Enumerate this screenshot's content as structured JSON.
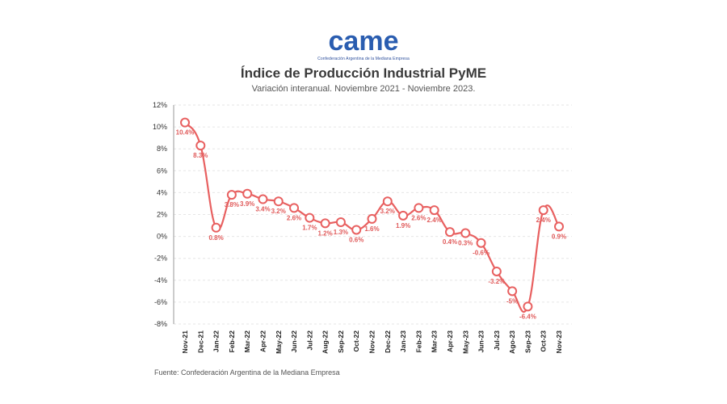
{
  "header": {
    "logo_text": "came",
    "logo_caption": "Confederación Argentina de la Mediana Empresa",
    "title": "Índice de Producción Industrial PyME",
    "subtitle": "Variación interanual. Noviembre 2021 - Noviembre 2023."
  },
  "footer": {
    "source": "Fuente: Confederación Argentina de la Mediana Empresa"
  },
  "colors": {
    "line": "#e86060",
    "marker_fill": "#ffffff",
    "label": "#e05a5a",
    "grid": "#e6e6e6",
    "logo_blue": "#2a5db0"
  },
  "chart_data": {
    "type": "line",
    "title": "Índice de Producción Industrial PyME",
    "subtitle": "Variación interanual. Noviembre 2021 - Noviembre 2023.",
    "xlabel": "",
    "ylabel": "",
    "ylim": [
      -8,
      12
    ],
    "yticks": [
      -8,
      -6,
      -4,
      -2,
      0,
      2,
      4,
      6,
      8,
      10,
      12
    ],
    "ytick_labels": [
      "-8%",
      "-6%",
      "-4%",
      "-2%",
      "0%",
      "2%",
      "4%",
      "6%",
      "8%",
      "10%",
      "12%"
    ],
    "grid": true,
    "categories": [
      "Nov-21",
      "Dec-21",
      "Jan-22",
      "Feb-22",
      "Mar-22",
      "Apr-22",
      "May-22",
      "Jun-22",
      "Jul-22",
      "Aug-22",
      "Sep-22",
      "Oct-22",
      "Nov-22",
      "Dec-22",
      "Jan-23",
      "Feb-23",
      "Mar-23",
      "Apr-23",
      "May-23",
      "Jun-23",
      "Jul-23",
      "Ago-23",
      "Sep-23",
      "Oct-23",
      "Nov-23"
    ],
    "series": [
      {
        "values": [
          10.4,
          8.3,
          0.8,
          3.8,
          3.9,
          3.4,
          3.2,
          2.6,
          1.7,
          1.2,
          1.3,
          0.6,
          1.6,
          3.2,
          1.9,
          2.6,
          2.4,
          0.4,
          0.3,
          -0.6,
          -3.2,
          -5,
          -6.4,
          2.4,
          0.9
        ],
        "labels": [
          "10.4%",
          "8.3%",
          "0.8%",
          "3.8%",
          "3.9%",
          "3.4%",
          "3.2%",
          "2.6%",
          "1.7%",
          "1.2%",
          "1.3%",
          "0.6%",
          "1.6%",
          "3.2%",
          "1.9%",
          "2.6%",
          "2.4%",
          "0.4%",
          "0.3%",
          "-0.6%",
          "-3.2%",
          "-5%",
          "-6.4%",
          "2.4%",
          "0.9%"
        ]
      }
    ]
  }
}
